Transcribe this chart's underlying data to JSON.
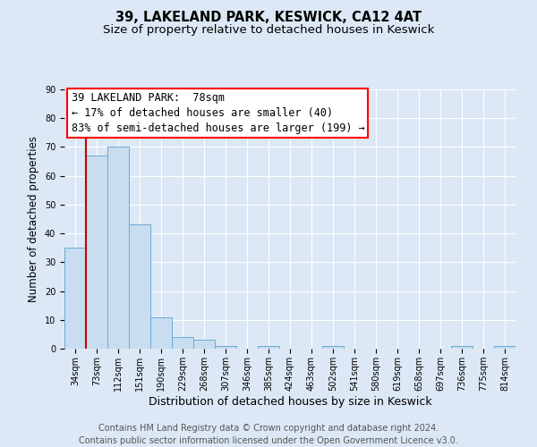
{
  "title": "39, LAKELAND PARK, KESWICK, CA12 4AT",
  "subtitle": "Size of property relative to detached houses in Keswick",
  "xlabel": "Distribution of detached houses by size in Keswick",
  "ylabel": "Number of detached properties",
  "bin_labels": [
    "34sqm",
    "73sqm",
    "112sqm",
    "151sqm",
    "190sqm",
    "229sqm",
    "268sqm",
    "307sqm",
    "346sqm",
    "385sqm",
    "424sqm",
    "463sqm",
    "502sqm",
    "541sqm",
    "580sqm",
    "619sqm",
    "658sqm",
    "697sqm",
    "736sqm",
    "775sqm",
    "814sqm"
  ],
  "bar_heights": [
    35,
    67,
    70,
    43,
    11,
    4,
    3,
    1,
    0,
    1,
    0,
    0,
    1,
    0,
    0,
    0,
    0,
    0,
    1,
    0,
    1
  ],
  "bar_color": "#c8ddf0",
  "bar_edge_color": "#6aaad4",
  "vline_color": "#cc0000",
  "vline_x_index": 1,
  "annotation_line1": "39 LAKELAND PARK:  78sqm",
  "annotation_line2": "← 17% of detached houses are smaller (40)",
  "annotation_line3": "83% of semi-detached houses are larger (199) →",
  "ylim": [
    0,
    90
  ],
  "yticks": [
    0,
    10,
    20,
    30,
    40,
    50,
    60,
    70,
    80,
    90
  ],
  "fig_bg_color": "#dce8f5",
  "plot_bg_color": "#dce8f5",
  "grid_color": "#ffffff",
  "footer_line1": "Contains HM Land Registry data © Crown copyright and database right 2024.",
  "footer_line2": "Contains public sector information licensed under the Open Government Licence v3.0.",
  "title_fontsize": 10.5,
  "subtitle_fontsize": 9.5,
  "xlabel_fontsize": 9,
  "ylabel_fontsize": 8.5,
  "tick_fontsize": 7,
  "annotation_fontsize": 8.5,
  "footer_fontsize": 7
}
